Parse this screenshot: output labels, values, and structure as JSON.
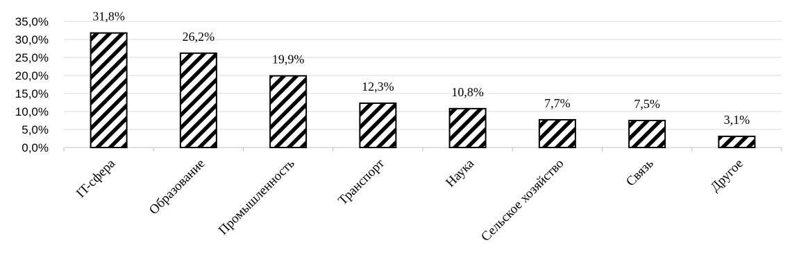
{
  "chart_data": {
    "type": "bar",
    "categories": [
      "IT-сфера",
      "Образование",
      "Промышленность",
      "Транспорт",
      "Наука",
      "Сельское хозяйство",
      "Связь",
      "Другое"
    ],
    "values": [
      31.8,
      26.2,
      19.9,
      12.3,
      10.8,
      7.7,
      7.5,
      3.1
    ],
    "value_labels": [
      "31,8%",
      "26,2%",
      "19,9%",
      "12,3%",
      "10,8%",
      "7,7%",
      "7,5%",
      "3,1%"
    ],
    "yticks": [
      0,
      5,
      10,
      15,
      20,
      25,
      30,
      35
    ],
    "ytick_labels": [
      "0,0%",
      "5,0%",
      "10,0%",
      "15,0%",
      "20,0%",
      "25,0%",
      "30,0%",
      "35,0%"
    ],
    "ylim": [
      0,
      35
    ],
    "grid": true,
    "bar_fill": "diagonal-hatch",
    "colors": {
      "bar_stroke": "#000000",
      "grid": "#d9d9d9",
      "background": "#ffffff"
    }
  }
}
